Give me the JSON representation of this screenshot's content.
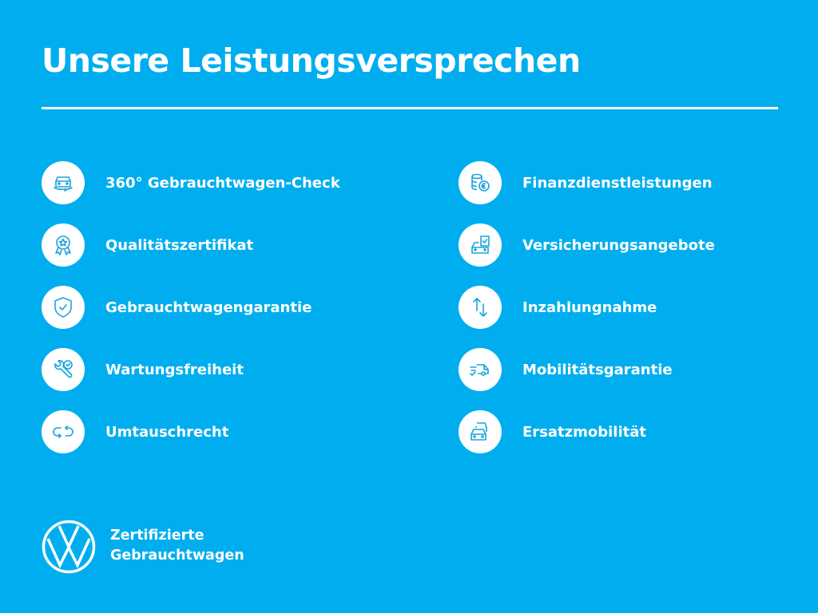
{
  "title": "Unsere Leistungsversprechen",
  "colors": {
    "background": "#00aeef",
    "icon_stroke": "#1aa3dd",
    "foreground": "#ffffff"
  },
  "left_items": [
    {
      "label": "360° Gebrauchtwagen-Check",
      "icon": "car-360-icon"
    },
    {
      "label": "Qualitätszertifikat",
      "icon": "award-rosette-icon"
    },
    {
      "label": "Gebrauchtwagengarantie",
      "icon": "shield-check-icon"
    },
    {
      "label": "Wartungsfreiheit",
      "icon": "wrench-check-icon"
    },
    {
      "label": "Umtauschrecht",
      "icon": "exchange-arrows-icon"
    }
  ],
  "right_items": [
    {
      "label": "Finanzdienstleistungen",
      "icon": "coins-euro-icon"
    },
    {
      "label": "Versicherungsangebote",
      "icon": "car-document-icon"
    },
    {
      "label": "Inzahlungnahme",
      "icon": "up-down-arrows-icon"
    },
    {
      "label": "Mobilitätsgarantie",
      "icon": "moving-van-icon"
    },
    {
      "label": "Ersatzmobilität",
      "icon": "stacked-cars-icon"
    }
  ],
  "brand": {
    "line1": "Zertifizierte",
    "line2": "Gebrauchtwagen",
    "logo": "vw-logo"
  }
}
